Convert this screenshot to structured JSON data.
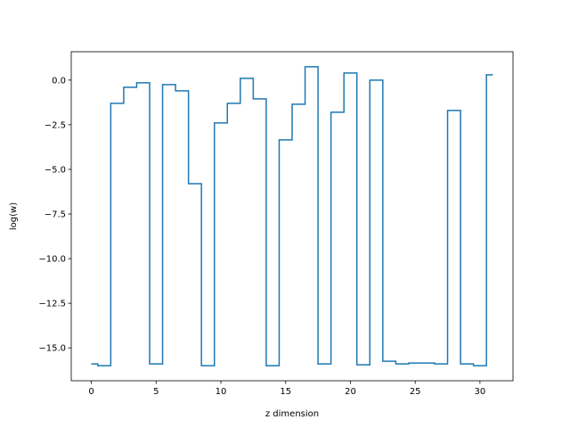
{
  "chart_data": {
    "type": "line",
    "drawstyle": "steps-mid",
    "title": "",
    "xlabel": "z dimension",
    "ylabel": "log(w)",
    "x": [
      0,
      1,
      2,
      3,
      4,
      5,
      6,
      7,
      8,
      9,
      10,
      11,
      12,
      13,
      14,
      15,
      16,
      17,
      18,
      19,
      20,
      21,
      22,
      23,
      24,
      25,
      26,
      27,
      28,
      29,
      30,
      31
    ],
    "series": [
      {
        "color": "#1f77b4",
        "values": [
          -15.9,
          -16.0,
          -1.3,
          -0.4,
          -0.15,
          -15.9,
          -0.25,
          -0.6,
          -5.8,
          -16.0,
          -2.4,
          -1.3,
          0.1,
          -1.05,
          -16.0,
          -3.35,
          -1.35,
          0.75,
          -15.9,
          -1.8,
          0.4,
          -15.95,
          0.0,
          -15.75,
          -15.9,
          -15.85,
          -15.85,
          -15.9,
          -1.7,
          -15.9,
          -16.0,
          0.3
        ]
      }
    ],
    "xlim": [
      -1.55,
      32.55
    ],
    "ylim": [
      -16.84,
      1.59
    ],
    "xticks": [
      0,
      5,
      10,
      15,
      20,
      25,
      30
    ],
    "xtick_labels": [
      "0",
      "5",
      "10",
      "15",
      "20",
      "25",
      "30"
    ],
    "yticks": [
      0.0,
      -2.5,
      -5.0,
      -7.5,
      -10.0,
      -12.5,
      -15.0
    ],
    "ytick_labels": [
      "0.0",
      "−2.5",
      "−5.0",
      "−7.5",
      "−10.0",
      "−12.5",
      "−15.0"
    ],
    "grid": false,
    "legend": false
  }
}
